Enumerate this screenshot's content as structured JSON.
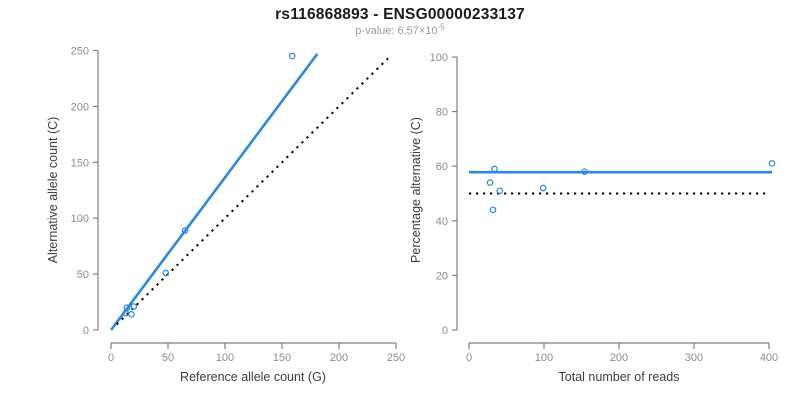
{
  "title": "rs116868893 - ENSG00000233137",
  "subtitle": {
    "prefix": "p-value: 6.57×10",
    "exponent": "-5"
  },
  "colors": {
    "accent_blue": "#2b87e0",
    "reference_black": "#000000",
    "axis_line_gray": "#808080",
    "tick_label_gray": "#8c8c8c",
    "axis_title_gray": "#3d3d3d",
    "subtitle_gray": "#999999"
  },
  "chart_data": [
    {
      "type": "scatter",
      "panel": "left",
      "xlabel": "Reference allele count (G)",
      "ylabel": "Alternative allele count (C)",
      "xlim": [
        0,
        250
      ],
      "ylim": [
        0,
        250
      ],
      "xticks": [
        0,
        50,
        100,
        150,
        200,
        250
      ],
      "yticks": [
        0,
        50,
        100,
        150,
        200,
        250
      ],
      "grid": false,
      "legend": "none",
      "points": [
        [
          159,
          245
        ],
        [
          65,
          89
        ],
        [
          48,
          51
        ],
        [
          14,
          20
        ],
        [
          20,
          21
        ],
        [
          18,
          14
        ],
        [
          13,
          15
        ]
      ],
      "lines": [
        {
          "name": "regression-fit-line",
          "style": "solid",
          "color": "#2b87e0",
          "from": [
            0,
            0
          ],
          "to": [
            181,
            247
          ]
        },
        {
          "name": "identity-line-y-equals-x",
          "style": "dotted",
          "color": "#000000",
          "from": [
            5,
            5
          ],
          "to": [
            243,
            243
          ]
        }
      ]
    },
    {
      "type": "scatter",
      "panel": "right",
      "xlabel": "Total number of reads",
      "ylabel": "Percentage alternative (C)",
      "xlim": [
        0,
        400
      ],
      "ylim": [
        0,
        100
      ],
      "xticks": [
        0,
        100,
        200,
        300,
        400
      ],
      "yticks": [
        0,
        20,
        40,
        60,
        80,
        100
      ],
      "grid": false,
      "legend": "none",
      "points": [
        [
          34,
          59
        ],
        [
          41,
          51
        ],
        [
          32,
          44
        ],
        [
          28,
          54
        ],
        [
          99,
          52
        ],
        [
          154,
          58
        ],
        [
          404,
          61
        ]
      ],
      "lines": [
        {
          "name": "fitted-percentage-line",
          "style": "solid",
          "color": "#2b87e0",
          "from": [
            0,
            57.8
          ],
          "to": [
            404,
            57.8
          ]
        },
        {
          "name": "fifty-percent-reference-line",
          "style": "dotted",
          "color": "#000000",
          "from": [
            0,
            50
          ],
          "to": [
            400,
            50
          ]
        }
      ]
    }
  ]
}
